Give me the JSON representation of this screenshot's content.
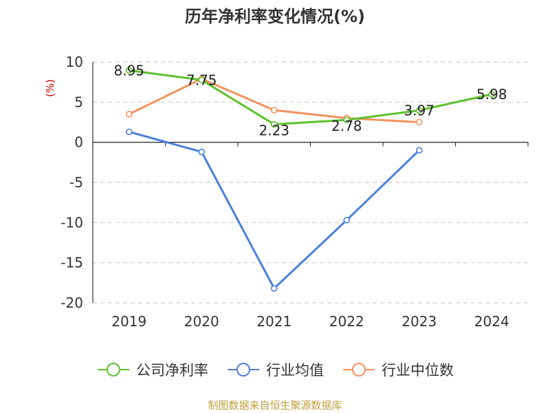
{
  "title": "历年净利率变化情况(%)",
  "source": "制图数据来自恒生聚源数据库",
  "chart_data": {
    "type": "line",
    "title": "历年净利率变化情况(%)",
    "ylabel": "(%)",
    "xlabel": "",
    "categories": [
      "2019",
      "2020",
      "2021",
      "2022",
      "2023",
      "2024"
    ],
    "ylim": [
      -20,
      10
    ],
    "yticks": [
      10,
      5,
      0,
      -5,
      -10,
      -15,
      -20
    ],
    "grid": true,
    "legend_position": "bottom",
    "series": [
      {
        "name": "公司净利率",
        "color": "#5cc12e",
        "values": [
          8.95,
          7.75,
          2.23,
          2.78,
          3.97,
          5.98
        ],
        "labels": [
          "8.95",
          "7.75",
          "2.23",
          "2.78",
          "3.97",
          "5.98"
        ]
      },
      {
        "name": "行业均值",
        "color": "#4a7fdb",
        "values": [
          1.3,
          -1.2,
          -18.2,
          -9.7,
          -1.0,
          null
        ]
      },
      {
        "name": "行业中位数",
        "color": "#f4915e",
        "values": [
          3.5,
          7.9,
          4.0,
          3.0,
          2.5,
          null
        ]
      }
    ]
  }
}
